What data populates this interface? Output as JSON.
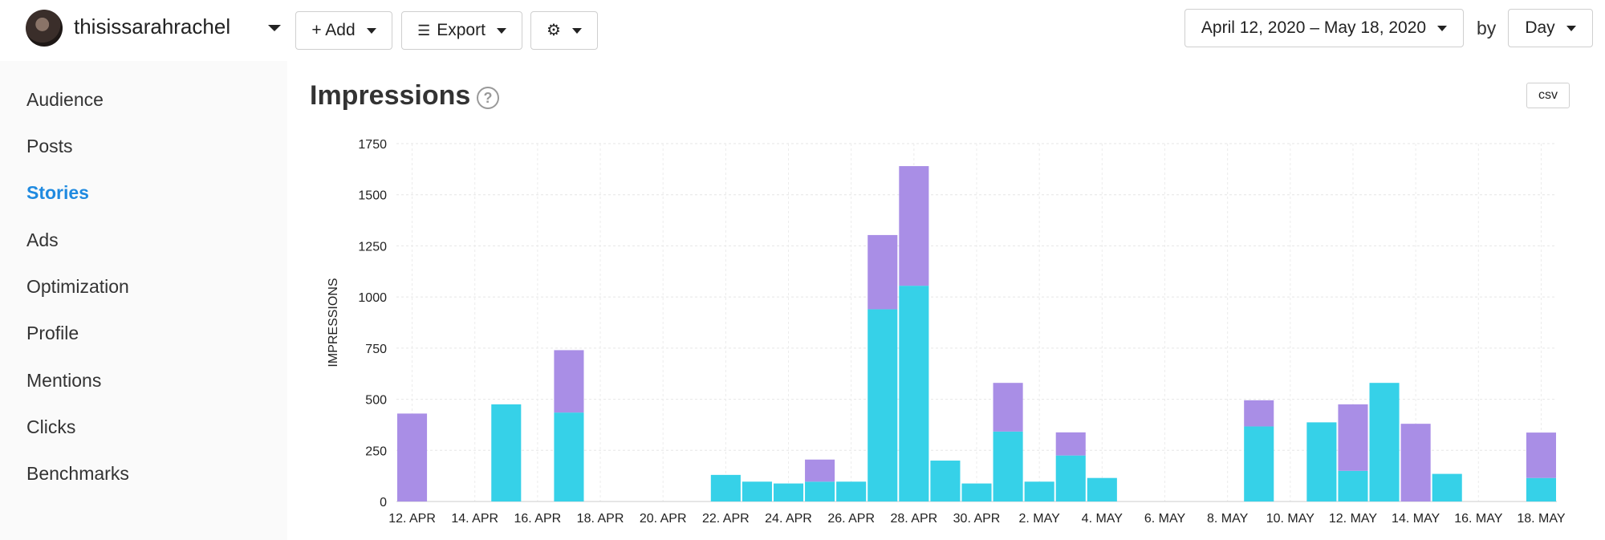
{
  "header": {
    "account_name": "thisissarahrachel",
    "add_label": "+ Add",
    "export_label": "Export",
    "date_range": "April 12, 2020 – May 18, 2020",
    "by_label": "by",
    "granularity": "Day"
  },
  "sidebar": {
    "items": [
      {
        "label": "Audience"
      },
      {
        "label": "Posts"
      },
      {
        "label": "Stories"
      },
      {
        "label": "Ads"
      },
      {
        "label": "Optimization"
      },
      {
        "label": "Profile"
      },
      {
        "label": "Mentions"
      },
      {
        "label": "Clicks"
      },
      {
        "label": "Benchmarks"
      }
    ],
    "active": "Stories"
  },
  "main": {
    "title": "Impressions",
    "help_glyph": "?",
    "csv_label": "csv"
  },
  "colors": {
    "series_cyan": "#36d1e8",
    "series_purple": "#a98ee6",
    "active_nav": "#1f8ae0"
  },
  "chart_data": {
    "type": "bar",
    "stacked": true,
    "ylabel": "IMPRESSIONS",
    "ylim": [
      0,
      1750
    ],
    "yticks": [
      0,
      250,
      500,
      750,
      1000,
      1250,
      1500,
      1750
    ],
    "xtick_labels": [
      "12. APR",
      "14. APR",
      "16. APR",
      "18. APR",
      "20. APR",
      "22. APR",
      "24. APR",
      "26. APR",
      "28. APR",
      "30. APR",
      "2. MAY",
      "4. MAY",
      "6. MAY",
      "8. MAY",
      "10. MAY",
      "12. MAY",
      "14. MAY",
      "16. MAY",
      "18. MAY"
    ],
    "categories": [
      "2020-04-12",
      "2020-04-13",
      "2020-04-14",
      "2020-04-15",
      "2020-04-16",
      "2020-04-17",
      "2020-04-18",
      "2020-04-19",
      "2020-04-20",
      "2020-04-21",
      "2020-04-22",
      "2020-04-23",
      "2020-04-24",
      "2020-04-25",
      "2020-04-26",
      "2020-04-27",
      "2020-04-28",
      "2020-04-29",
      "2020-04-30",
      "2020-05-01",
      "2020-05-02",
      "2020-05-03",
      "2020-05-04",
      "2020-05-05",
      "2020-05-06",
      "2020-05-07",
      "2020-05-08",
      "2020-05-09",
      "2020-05-10",
      "2020-05-11",
      "2020-05-12",
      "2020-05-13",
      "2020-05-14",
      "2020-05-15",
      "2020-05-16",
      "2020-05-17",
      "2020-05-18"
    ],
    "series": [
      {
        "color": "#36d1e8",
        "values": [
          0,
          0,
          0,
          475,
          0,
          435,
          0,
          0,
          0,
          0,
          130,
          97,
          88,
          97,
          97,
          940,
          1055,
          200,
          88,
          342,
          97,
          225,
          115,
          0,
          0,
          0,
          0,
          367,
          0,
          387,
          150,
          580,
          0,
          135,
          0,
          0,
          115
        ]
      },
      {
        "color": "#a98ee6",
        "values": [
          430,
          0,
          0,
          0,
          0,
          305,
          0,
          0,
          0,
          0,
          0,
          0,
          0,
          108,
          0,
          363,
          585,
          0,
          0,
          238,
          0,
          113,
          0,
          0,
          0,
          0,
          0,
          128,
          0,
          0,
          325,
          0,
          380,
          0,
          0,
          0,
          222
        ]
      }
    ],
    "grid": true
  }
}
